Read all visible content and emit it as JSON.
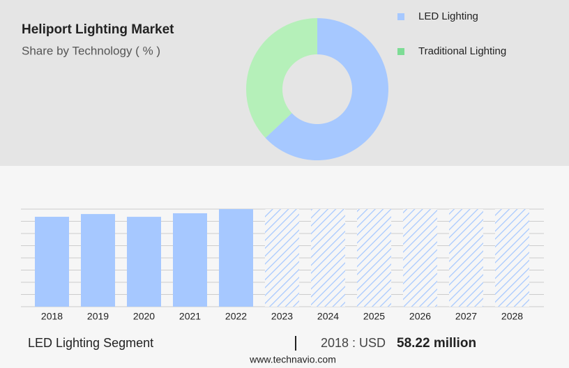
{
  "chart_data": [
    {
      "type": "donut",
      "title": "Heliport Lighting Market",
      "subtitle": "Share by Technology ( % )",
      "categories": [
        "LED Lighting",
        "Traditional Lighting"
      ],
      "values": [
        63,
        37
      ],
      "colors": [
        "#a6c8ff",
        "#b5f0b9"
      ],
      "legend_colors": [
        "#a6c8ff",
        "#7ddc95"
      ],
      "legend": "top-right"
    },
    {
      "type": "bar",
      "categories": [
        "2018",
        "2019",
        "2020",
        "2021",
        "2022",
        "2023",
        "2024",
        "2025",
        "2026",
        "2027",
        "2028"
      ],
      "values": [
        58.22,
        60.0,
        58.2,
        60.5,
        63.2,
        null,
        null,
        null,
        null,
        null,
        null
      ],
      "color": "#a6c8ff",
      "forecast_color": "#a6c8ff",
      "grid": true
    }
  ],
  "footer": {
    "segment": "LED Lighting Segment",
    "year_label": "2018 : USD",
    "value_label": "58.22 million",
    "website": "www.technavio.com"
  }
}
